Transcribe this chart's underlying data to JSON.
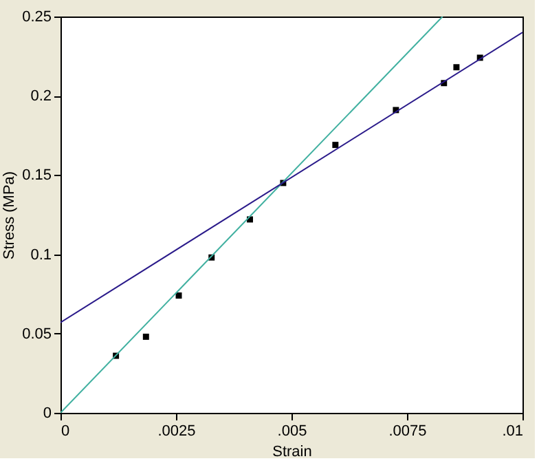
{
  "chart_data": {
    "type": "scatter",
    "xlabel": "Strain",
    "ylabel": "Stress (MPa)",
    "xlim": [
      0,
      0.01
    ],
    "ylim": [
      0,
      0.25
    ],
    "xticks": [
      {
        "value": 0,
        "label": "0"
      },
      {
        "value": 0.0025,
        "label": ".0025"
      },
      {
        "value": 0.005,
        "label": ".005"
      },
      {
        "value": 0.0075,
        "label": ".0075"
      },
      {
        "value": 0.01,
        "label": ".01"
      }
    ],
    "yticks": [
      0,
      0.05,
      0.1,
      0.15,
      0.2,
      0.25
    ],
    "grid": false,
    "series": [
      {
        "color": "#000000",
        "marker": "square",
        "x": [
          0.0012,
          0.00185,
          0.00256,
          0.00327,
          0.0041,
          0.00482,
          0.00595,
          0.00726,
          0.0083,
          0.00857,
          0.00908
        ],
        "values": [
          0.036,
          0.048,
          0.074,
          0.098,
          0.122,
          0.145,
          0.169,
          0.191,
          0.208,
          0.218,
          0.224
        ]
      },
      {
        "type": "line",
        "line_style": "solid",
        "color": "#40b0a0",
        "x": [
          0,
          0.00827
        ],
        "values": [
          0,
          0.25
        ]
      },
      {
        "type": "line",
        "line_style": "solid",
        "color": "#2a1a8a",
        "x": [
          0,
          0.01
        ],
        "values": [
          0.057,
          0.24
        ]
      }
    ]
  }
}
